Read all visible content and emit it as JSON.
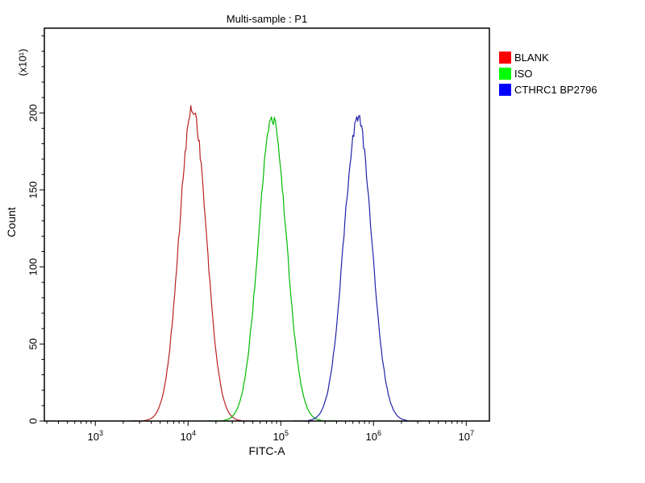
{
  "window": {
    "background": "#ffffff"
  },
  "chart_data": {
    "type": "line",
    "subtype": "flow-cytometry-histogram-overlay",
    "title": "Multi-sample : P1",
    "xlabel": "FITC-A",
    "ylabel": "Count",
    "y_unit_label": "(x10¹)",
    "x_scale": "log",
    "x_range_log10": [
      2.45,
      7.25
    ],
    "ylim": [
      0,
      255
    ],
    "y_ticks": [
      0,
      50,
      100,
      150,
      200
    ],
    "y_minor_step": 10,
    "x_ticks": [
      {
        "log10": 3,
        "base": "10",
        "exp": "3"
      },
      {
        "log10": 4,
        "base": "10",
        "exp": "4"
      },
      {
        "log10": 5,
        "base": "10",
        "exp": "5"
      },
      {
        "log10": 6,
        "base": "10",
        "exp": "6"
      },
      {
        "log10": 7,
        "base": "10",
        "exp": "7"
      }
    ],
    "grid": false,
    "legend_position": "top-right-outside",
    "axis_color": "#000000",
    "series": [
      {
        "name": "BLANK",
        "legend_color": "#ff0000",
        "line_color": "#bb2222",
        "peak_x_value": 11000,
        "peak_log10": 4.05,
        "sigma_log10": 0.145,
        "peak_count": 203
      },
      {
        "name": "ISO",
        "legend_color": "#00ff00",
        "line_color": "#00bb00",
        "peak_x_value": 81000,
        "peak_log10": 4.91,
        "sigma_log10": 0.15,
        "peak_count": 197
      },
      {
        "name": "CTHRC1 BP2796",
        "legend_color": "#0000ff",
        "line_color": "#2222aa",
        "peak_x_value": 680000,
        "peak_log10": 5.83,
        "sigma_log10": 0.15,
        "peak_count": 197
      }
    ]
  }
}
